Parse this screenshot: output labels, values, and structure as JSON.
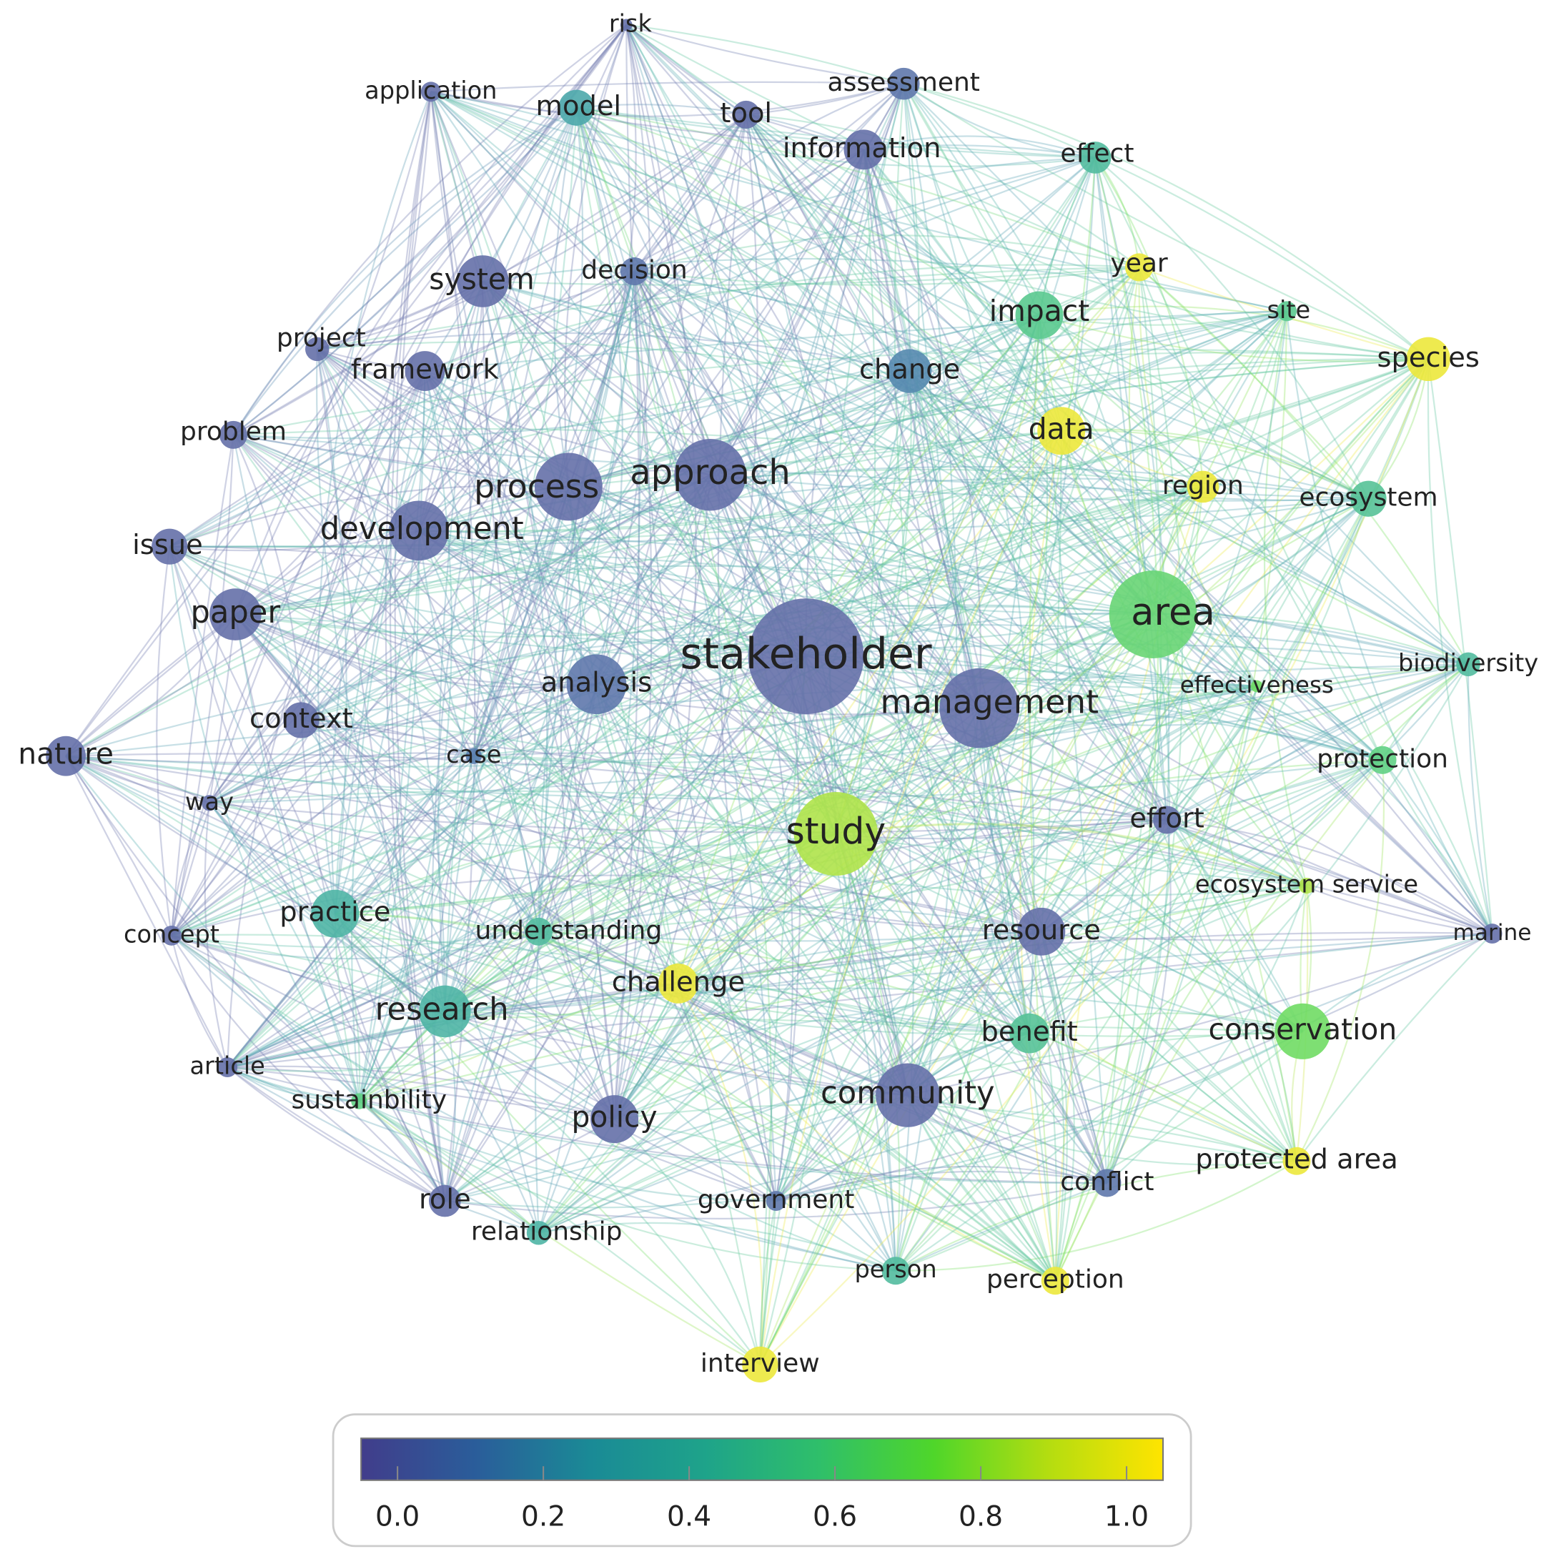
{
  "nodes": [
    {
      "label": "risk",
      "score": 0.0
    },
    {
      "label": "application",
      "score": 0.0
    },
    {
      "label": "model",
      "score": 0.3
    },
    {
      "label": "tool",
      "score": 0.0
    },
    {
      "label": "assessment",
      "score": 0.05
    },
    {
      "label": "information",
      "score": 0.0
    },
    {
      "label": "effect",
      "score": 0.45
    },
    {
      "label": "year",
      "score": 1.0
    },
    {
      "label": "system",
      "score": 0.0
    },
    {
      "label": "decision",
      "score": 0.05
    },
    {
      "label": "impact",
      "score": 0.55
    },
    {
      "label": "site",
      "score": 0.55
    },
    {
      "label": "species",
      "score": 1.0
    },
    {
      "label": "project",
      "score": 0.0
    },
    {
      "label": "framework",
      "score": 0.0
    },
    {
      "label": "change",
      "score": 0.15
    },
    {
      "label": "problem",
      "score": 0.0
    },
    {
      "label": "data",
      "score": 1.0
    },
    {
      "label": "region",
      "score": 1.0
    },
    {
      "label": "ecosystem",
      "score": 0.5
    },
    {
      "label": "process",
      "score": 0.0
    },
    {
      "label": "approach",
      "score": 0.0
    },
    {
      "label": "issue",
      "score": 0.0
    },
    {
      "label": "development",
      "score": 0.0
    },
    {
      "label": "paper",
      "score": 0.0
    },
    {
      "label": "area",
      "score": 0.65
    },
    {
      "label": "stakeholder",
      "score": 0.0
    },
    {
      "label": "analysis",
      "score": 0.05
    },
    {
      "label": "management",
      "score": 0.0
    },
    {
      "label": "effectiveness",
      "score": 0.7
    },
    {
      "label": "biodiversity",
      "score": 0.45
    },
    {
      "label": "context",
      "score": 0.0
    },
    {
      "label": "nature",
      "score": 0.0
    },
    {
      "label": "case",
      "score": 0.1
    },
    {
      "label": "protection",
      "score": 0.6
    },
    {
      "label": "way",
      "score": 0.0
    },
    {
      "label": "study",
      "score": 0.85
    },
    {
      "label": "effort",
      "score": 0.0
    },
    {
      "label": "ecosystem service",
      "score": 0.85
    },
    {
      "label": "practice",
      "score": 0.4
    },
    {
      "label": "understanding",
      "score": 0.45
    },
    {
      "label": "concept",
      "score": 0.0
    },
    {
      "label": "resource",
      "score": 0.0
    },
    {
      "label": "marine",
      "score": 0.0
    },
    {
      "label": "challenge",
      "score": 1.0
    },
    {
      "label": "research",
      "score": 0.4
    },
    {
      "label": "benefit",
      "score": 0.5
    },
    {
      "label": "conservation",
      "score": 0.7
    },
    {
      "label": "article",
      "score": 0.0
    },
    {
      "label": "sustainbility",
      "score": 0.6
    },
    {
      "label": "community",
      "score": 0.0
    },
    {
      "label": "policy",
      "score": 0.0
    },
    {
      "label": "protected area",
      "score": 1.0
    },
    {
      "label": "conflict",
      "score": 0.05
    },
    {
      "label": "role",
      "score": 0.0
    },
    {
      "label": "government",
      "score": 0.05
    },
    {
      "label": "relationship",
      "score": 0.4
    },
    {
      "label": "person",
      "score": 0.45
    },
    {
      "label": "perception",
      "score": 1.0
    },
    {
      "label": "interview",
      "score": 1.0
    }
  ],
  "legend": {
    "range": [
      -0.05,
      1.05
    ],
    "colors": [
      "#413d8b",
      "#2a5d9a",
      "#1a8a96",
      "#1ea38a",
      "#2fbf6a",
      "#4fd62a",
      "#b4dd10",
      "#ffe400"
    ],
    "ticks": [
      {
        "value": 0,
        "label": "0.0"
      },
      {
        "value": 0.2,
        "label": "0.2"
      },
      {
        "value": 0.4,
        "label": "0.4"
      },
      {
        "value": 0.6,
        "label": "0.6"
      },
      {
        "value": 0.8,
        "label": "0.8"
      },
      {
        "value": 1,
        "label": "1.0"
      }
    ]
  }
}
